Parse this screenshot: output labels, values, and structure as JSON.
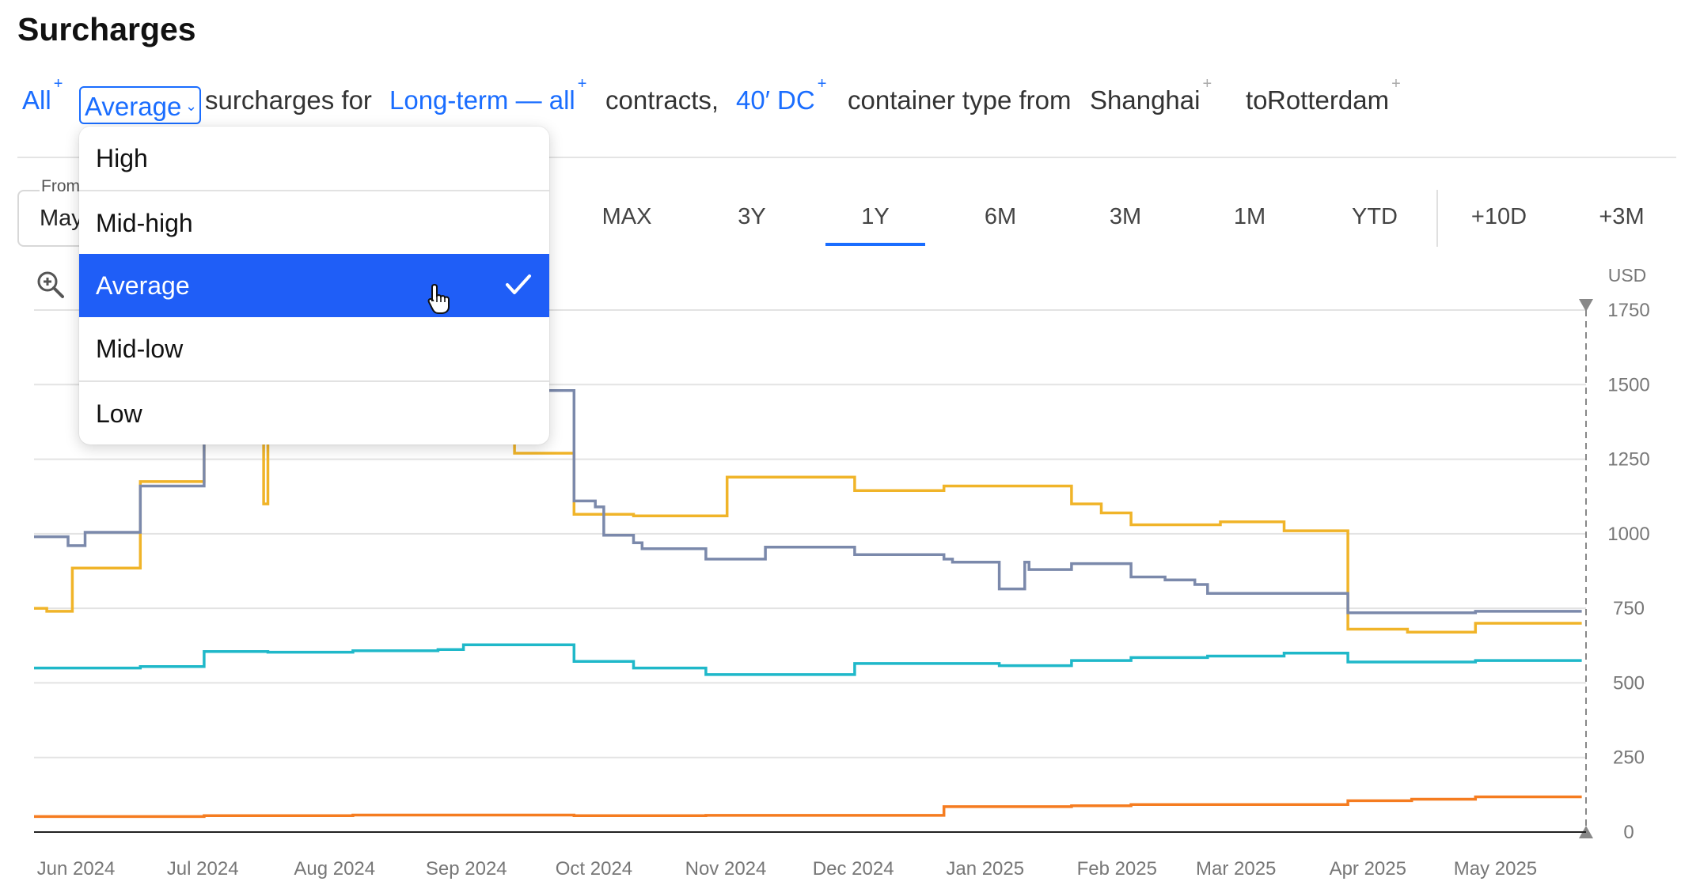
{
  "page": {
    "title": "Surcharges"
  },
  "filters": {
    "scope": "All",
    "aggregation": "Average",
    "text_surcharges_for": "surcharges for",
    "contract": "Long-term — all",
    "text_contracts": "contracts,",
    "container": "40′ DC",
    "text_container_type_from": "container type from",
    "origin": "Shanghai",
    "text_to": "to",
    "destination": "Rotterdam",
    "plus": "+"
  },
  "dropdown": {
    "options": [
      "High",
      "Mid-high",
      "Average",
      "Mid-low",
      "Low"
    ],
    "selected": "Average"
  },
  "date_from": {
    "label": "From",
    "value": "May"
  },
  "ranges": [
    "MAX",
    "3Y",
    "1Y",
    "6M",
    "3M",
    "1M",
    "YTD",
    "+10D",
    "+3M"
  ],
  "active_range": "1Y",
  "chart_data": {
    "type": "line",
    "step": true,
    "unit_label": "USD",
    "ylim": [
      0,
      1750
    ],
    "yticks": [
      0,
      250,
      500,
      750,
      1000,
      1250,
      1500,
      1750
    ],
    "x_ticks": [
      "Jun 2024",
      "Jul 2024",
      "Aug 2024",
      "Sep 2024",
      "Oct 2024",
      "Nov 2024",
      "Dec 2024",
      "Jan 2025",
      "Feb 2025",
      "Mar 2025",
      "Apr 2025",
      "May 2025"
    ],
    "x_range": [
      "2024-06-01",
      "2025-06-01"
    ],
    "grid": true,
    "series": [
      {
        "color": "#f0b429",
        "points": [
          [
            "2024-06-01",
            750
          ],
          [
            "2024-06-04",
            740
          ],
          [
            "2024-06-10",
            885
          ],
          [
            "2024-06-26",
            1175
          ],
          [
            "2024-07-11",
            1500
          ],
          [
            "2024-07-25",
            1100
          ],
          [
            "2024-07-26",
            1500
          ],
          [
            "2024-09-22",
            1270
          ],
          [
            "2024-10-06",
            1065
          ],
          [
            "2024-10-20",
            1060
          ],
          [
            "2024-11-11",
            1190
          ],
          [
            "2024-12-11",
            1145
          ],
          [
            "2025-01-01",
            1160
          ],
          [
            "2025-01-31",
            1100
          ],
          [
            "2025-02-07",
            1070
          ],
          [
            "2025-02-14",
            1030
          ],
          [
            "2025-03-07",
            1040
          ],
          [
            "2025-03-22",
            1010
          ],
          [
            "2025-04-06",
            680
          ],
          [
            "2025-04-20",
            670
          ],
          [
            "2025-05-06",
            700
          ],
          [
            "2025-05-31",
            700
          ]
        ]
      },
      {
        "color": "#7b89ab",
        "points": [
          [
            "2024-06-01",
            990
          ],
          [
            "2024-06-09",
            960
          ],
          [
            "2024-06-13",
            1005
          ],
          [
            "2024-06-26",
            1160
          ],
          [
            "2024-07-11",
            1500
          ],
          [
            "2024-09-25",
            1480
          ],
          [
            "2024-10-06",
            1110
          ],
          [
            "2024-10-11",
            1090
          ],
          [
            "2024-10-13",
            995
          ],
          [
            "2024-10-20",
            970
          ],
          [
            "2024-10-22",
            950
          ],
          [
            "2024-11-06",
            915
          ],
          [
            "2024-11-20",
            955
          ],
          [
            "2024-12-11",
            930
          ],
          [
            "2025-01-01",
            915
          ],
          [
            "2025-01-03",
            905
          ],
          [
            "2025-01-14",
            815
          ],
          [
            "2025-01-20",
            905
          ],
          [
            "2025-01-21",
            880
          ],
          [
            "2025-01-31",
            900
          ],
          [
            "2025-02-14",
            855
          ],
          [
            "2025-02-22",
            845
          ],
          [
            "2025-03-01",
            830
          ],
          [
            "2025-03-04",
            800
          ],
          [
            "2025-04-06",
            735
          ],
          [
            "2025-05-06",
            740
          ],
          [
            "2025-05-31",
            740
          ]
        ]
      },
      {
        "color": "#1fb8c9",
        "points": [
          [
            "2024-06-01",
            550
          ],
          [
            "2024-06-26",
            555
          ],
          [
            "2024-07-11",
            605
          ],
          [
            "2024-07-26",
            603
          ],
          [
            "2024-08-15",
            608
          ],
          [
            "2024-09-04",
            612
          ],
          [
            "2024-09-10",
            628
          ],
          [
            "2024-10-06",
            572
          ],
          [
            "2024-10-20",
            550
          ],
          [
            "2024-11-06",
            528
          ],
          [
            "2024-12-11",
            565
          ],
          [
            "2025-01-14",
            558
          ],
          [
            "2025-01-31",
            575
          ],
          [
            "2025-02-14",
            585
          ],
          [
            "2025-03-04",
            590
          ],
          [
            "2025-03-22",
            600
          ],
          [
            "2025-04-06",
            570
          ],
          [
            "2025-05-06",
            575
          ],
          [
            "2025-05-31",
            575
          ]
        ]
      },
      {
        "color": "#f57c20",
        "points": [
          [
            "2024-06-01",
            52
          ],
          [
            "2024-07-11",
            55
          ],
          [
            "2024-08-15",
            57
          ],
          [
            "2024-10-06",
            55
          ],
          [
            "2024-11-06",
            56
          ],
          [
            "2025-01-01",
            85
          ],
          [
            "2025-01-31",
            88
          ],
          [
            "2025-02-14",
            92
          ],
          [
            "2025-04-06",
            105
          ],
          [
            "2025-04-21",
            110
          ],
          [
            "2025-05-06",
            118
          ],
          [
            "2025-05-31",
            118
          ]
        ]
      }
    ]
  }
}
